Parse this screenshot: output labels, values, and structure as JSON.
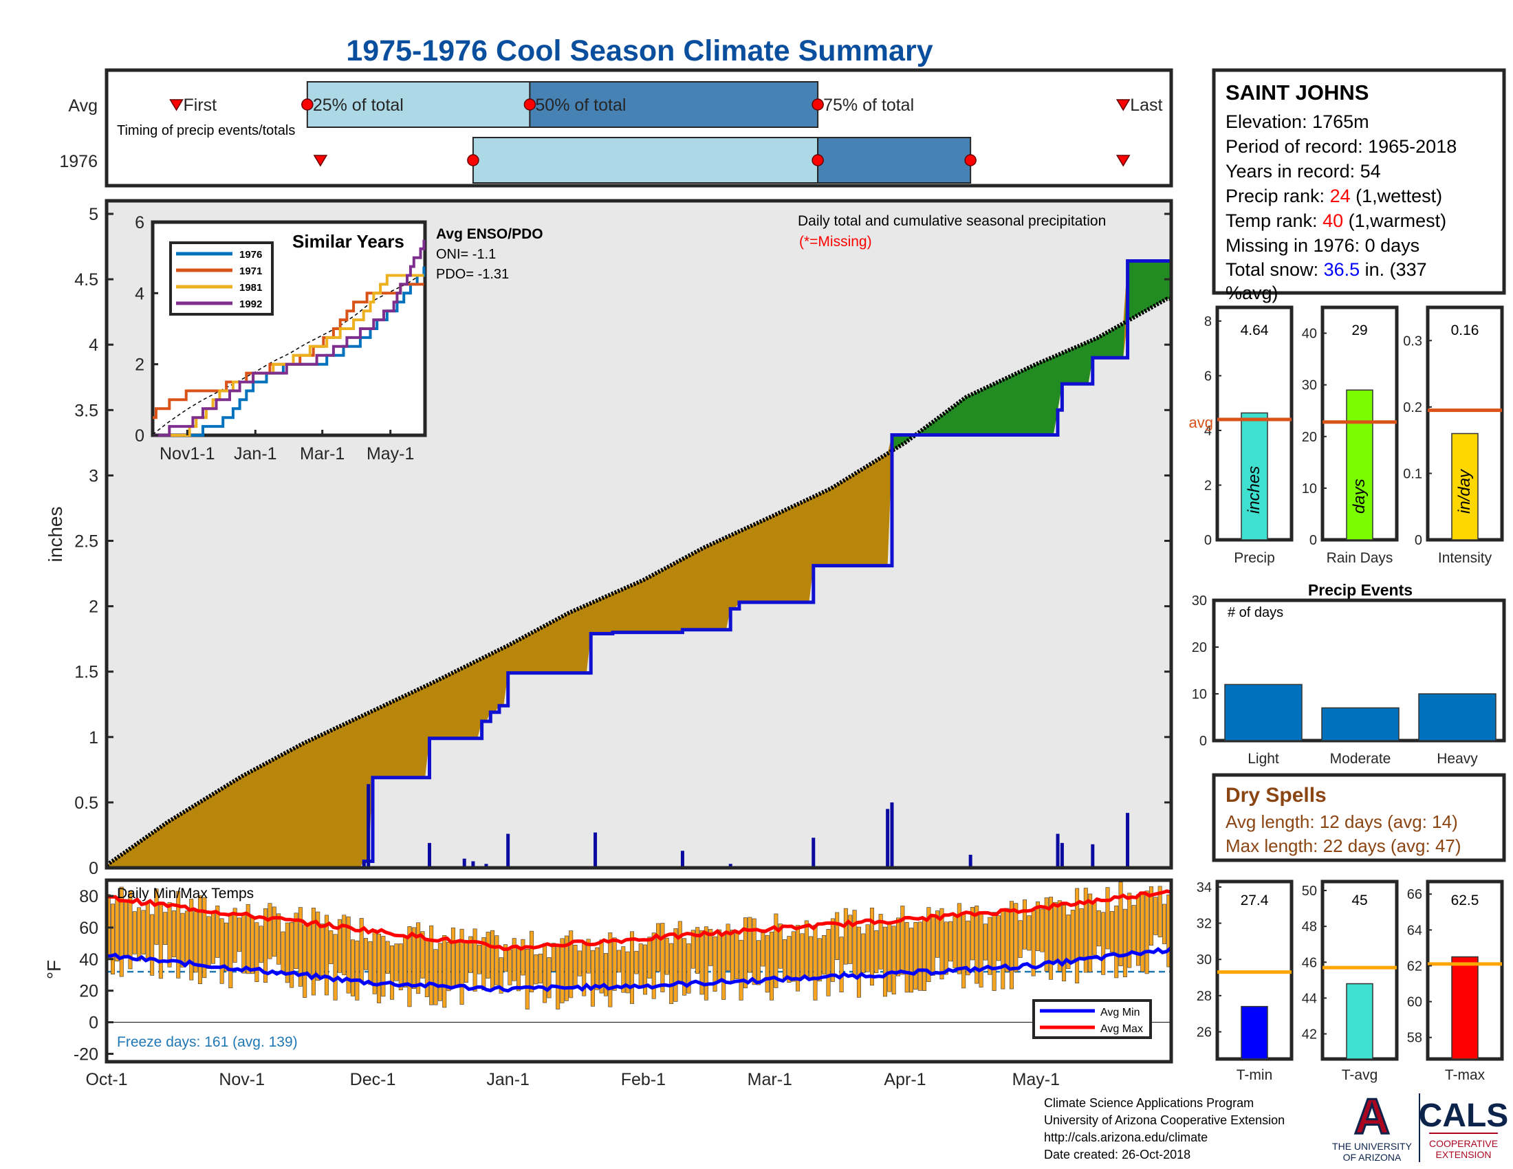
{
  "title": "1975-1976 Cool Season Climate Summary",
  "colors": {
    "title": "#0a4f9e",
    "cumulative_avg": "#000000",
    "above_avg_fill": "#228B22",
    "below_avg_fill": "#B8860B",
    "cumulative_1976": "#1010d0",
    "daily_bars": "#0a0aa0",
    "panel_bg": "#e8e8e8",
    "temp_bars": "#F7A520",
    "avg_min_line": "#0000ff",
    "avg_max_line": "#ff0000",
    "freeze_line": "#1f77b4",
    "avg_marker": "#ff0000",
    "light_blue": "#add8e6",
    "steel_blue": "#4682b4",
    "rank_red": "#ff0000",
    "snow_blue": "#0000ff",
    "dry_brown": "#8B4513",
    "avg_line": "#d95319",
    "temp_avg_line": "#ffa500",
    "precip_bar": "#40e0d0",
    "raindays_bar": "#7cfc00",
    "intensity_bar": "#ffd700",
    "events_bar": "#0072bd",
    "tmin_bar": "#0000ff",
    "tavg_bar": "#40e0d0",
    "tmax_bar": "#ff0000"
  },
  "timing": {
    "row_labels": [
      "Avg",
      "1976"
    ],
    "note": "Timing of precip events/totals",
    "avg_labels": {
      "first": "First",
      "q25": "25% of total",
      "q50": "50% of total",
      "q75": "75% of total",
      "last": "Last"
    },
    "avg": {
      "first": "Oct-17",
      "q25": "Nov-16",
      "q50": "Jan-6",
      "q75": "Mar-12",
      "last": "May-21"
    },
    "y1976": {
      "first": "Nov-19",
      "q25": "Dec-24",
      "q50": "Mar-12",
      "q75": "Apr-16",
      "last": "May-21"
    }
  },
  "station": {
    "name": "SAINT JOHNS",
    "elevation": "Elevation: 1765m",
    "period": "Period of record: 1965-2018",
    "years": "Years in record: 54",
    "precip_rank_label": "Precip rank: ",
    "precip_rank_value": "24",
    "precip_rank_note": " (1,wettest)",
    "temp_rank_label": "Temp rank: ",
    "temp_rank_value": "40",
    "temp_rank_note": " (1,warmest)",
    "missing": "Missing in 1976: 0 days",
    "snow_label": "Total snow: ",
    "snow_value": "36.5",
    "snow_note": " in. (337",
    "snow_note2": "%avg)"
  },
  "precip_panel": {
    "ylabel": "inches",
    "yticks": [
      "0",
      "0.5",
      "1",
      "1.5",
      "2",
      "2.5",
      "3",
      "3.5",
      "4",
      "4.5",
      "5"
    ],
    "annotation": "Daily total and cumulative seasonal precipitation",
    "missing_note": "(*=Missing)"
  },
  "similar_years": {
    "title": "Similar Years",
    "legend": [
      "1976",
      "1971",
      "1981",
      "1992"
    ],
    "colors": [
      "#0072bd",
      "#d95319",
      "#edb120",
      "#7e2f8e"
    ],
    "yticks": [
      "0",
      "2",
      "4",
      "6"
    ],
    "xticks": [
      "Nov1-1",
      "Jan-1",
      "Mar-1",
      "May-1"
    ],
    "enso_title": "Avg ENSO/PDO",
    "oni": "ONI= -1.1",
    "pdo": "PDO= -1.31"
  },
  "temp_panel": {
    "label": "Daily Min/Max Temps",
    "ylabel": "°F",
    "yticks": [
      "80",
      "60",
      "40",
      "20",
      "0",
      "-20"
    ],
    "freeze": "Freeze days: 161 (avg. 139)",
    "legend": [
      "Avg Min",
      "Avg Max"
    ]
  },
  "xaxis": {
    "ticks": [
      "Oct-1",
      "Nov-1",
      "Dec-1",
      "Jan-1",
      "Feb-1",
      "Mar-1",
      "Apr-1",
      "May-1"
    ]
  },
  "summary_bars": [
    {
      "label": "Precip",
      "value_text": "4.64",
      "value": 4.64,
      "avg": 4.4,
      "inner": "inches",
      "yticks": [
        "0",
        "2",
        "4",
        "6",
        "8"
      ],
      "avg_label": "avg",
      "max": 8.5
    },
    {
      "label": "Rain Days",
      "value_text": "29",
      "value": 29,
      "avg": 22.8,
      "inner": "days",
      "yticks": [
        "0",
        "10",
        "20",
        "30",
        "40"
      ],
      "max": 45
    },
    {
      "label": "Intensity",
      "value_text": "0.16",
      "value": 0.16,
      "avg": 0.195,
      "inner": "in/day",
      "yticks": [
        "0",
        "0.1",
        "0.2",
        "0.3"
      ],
      "max": 0.35
    }
  ],
  "events": {
    "title": "Precip Events",
    "ylabel": "# of days",
    "yticks": [
      "0",
      "10",
      "20",
      "30"
    ],
    "categories": [
      "Light",
      "Moderate",
      "Heavy"
    ],
    "values": [
      12,
      7,
      10
    ]
  },
  "dry_spells": {
    "title": "Dry Spells",
    "avg": "Avg length: 12 days (avg: 14)",
    "max": "Max length: 22 days (avg: 47)"
  },
  "temp_summary": [
    {
      "label": "T-min",
      "value_text": "27.4",
      "value": 27.4,
      "avg": 29.3,
      "yticks": [
        "26",
        "28",
        "30",
        "32",
        "34"
      ],
      "min": 24.5,
      "max": 34.3
    },
    {
      "label": "T-avg",
      "value_text": "45",
      "value": 44.8,
      "avg": 45.7,
      "yticks": [
        "42",
        "44",
        "46",
        "48",
        "50"
      ],
      "min": 40.6,
      "max": 50.5
    },
    {
      "label": "T-max",
      "value_text": "62.5",
      "value": 62.5,
      "avg": 62.1,
      "yticks": [
        "58",
        "60",
        "62",
        "64",
        "66"
      ],
      "min": 56.8,
      "max": 66.7
    }
  ],
  "footer": {
    "line1": "Climate Science Applications Program",
    "line2": "University of Arizona Cooperative Extension",
    "line3": "http://cals.arizona.edu/climate",
    "line4": " Date created: 26-Oct-2018"
  },
  "logos": {
    "ua_letter": "A",
    "ua_text1": "THE UNIVERSITY",
    "ua_text2": "OF ARIZONA",
    "cals": "CALS",
    "cals_text1": "COOPERATIVE",
    "cals_text2": "EXTENSION"
  },
  "chart_data": [
    {
      "type": "area",
      "title": "Daily total and cumulative seasonal precipitation",
      "ylabel": "inches",
      "ylim": [
        0,
        5.1
      ],
      "x_range": [
        "Oct-1",
        "May-31"
      ],
      "series": [
        {
          "name": "avg cumulative",
          "x": [
            "Oct-1",
            "Oct-15",
            "Nov-1",
            "Nov-15",
            "Dec-1",
            "Dec-15",
            "Jan-1",
            "Jan-15",
            "Feb-1",
            "Feb-15",
            "Mar-1",
            "Mar-15",
            "Apr-1",
            "Apr-15",
            "May-1",
            "May-15",
            "May-31"
          ],
          "values": [
            0.02,
            0.35,
            0.7,
            0.95,
            1.2,
            1.42,
            1.7,
            1.95,
            2.2,
            2.45,
            2.68,
            2.9,
            3.25,
            3.6,
            3.85,
            4.05,
            4.35
          ]
        },
        {
          "name": "1976 cumulative",
          "x": [
            "Oct-1",
            "Nov-18",
            "Nov-29",
            "Dec-1",
            "Dec-14",
            "Dec-26",
            "Dec-28",
            "Dec-30",
            "Jan-1",
            "Jan-20",
            "Jan-25",
            "Feb-10",
            "Feb-21",
            "Feb-23",
            "Mar-1",
            "Mar-11",
            "Mar-28",
            "Mar-29",
            "Apr-16",
            "Apr-17",
            "May-6",
            "May-7",
            "May-14",
            "May-22",
            "May-31"
          ],
          "values": [
            0,
            0,
            0.05,
            0.69,
            0.99,
            1.12,
            1.19,
            1.24,
            1.49,
            1.79,
            1.8,
            1.82,
            1.98,
            2.03,
            2.03,
            2.31,
            2.31,
            3.31,
            3.31,
            3.31,
            3.5,
            3.7,
            3.9,
            4.64,
            4.64
          ]
        },
        {
          "name": "1976 daily",
          "x": [
            "Nov-29",
            "Nov-30",
            "Dec-14",
            "Dec-22",
            "Dec-24",
            "Dec-27",
            "Jan-1",
            "Jan-21",
            "Feb-10",
            "Feb-21",
            "Mar-11",
            "Mar-28",
            "Mar-29",
            "Apr-16",
            "May-6",
            "May-7",
            "May-14",
            "May-22"
          ],
          "values": [
            0.05,
            0.64,
            0.19,
            0.07,
            0.05,
            0.03,
            0.26,
            0.27,
            0.13,
            0.03,
            0.23,
            0.45,
            0.5,
            0.1,
            0.26,
            0.19,
            0.18,
            0.42
          ]
        }
      ]
    },
    {
      "type": "line",
      "title": "Similar Years",
      "ylim": [
        0,
        6
      ],
      "x": [
        "Oct-1",
        "Nov-1",
        "Dec-1",
        "Jan-1",
        "Feb-1",
        "Mar-1",
        "Apr-1",
        "May-1",
        "Jun-1"
      ],
      "series": [
        {
          "name": "1976",
          "values": [
            0,
            0,
            0.3,
            1.5,
            2.0,
            2.1,
            2.6,
            3.5,
            4.7
          ]
        },
        {
          "name": "1971",
          "values": [
            0.6,
            1.2,
            1.3,
            1.8,
            2.0,
            2.6,
            3.8,
            4.1,
            4.2
          ]
        },
        {
          "name": "1981",
          "values": [
            0,
            0.1,
            1.2,
            1.7,
            2.1,
            2.6,
            3.2,
            4.6,
            4.5
          ]
        },
        {
          "name": "1992",
          "values": [
            0,
            0.3,
            1.0,
            1.7,
            1.9,
            2.2,
            2.8,
            3.6,
            5.5
          ]
        }
      ]
    },
    {
      "type": "bar",
      "title": "Daily Min/Max Temps",
      "ylabel": "°F",
      "ylim": [
        -25,
        90
      ],
      "x_range": [
        "Oct-1",
        "May-31"
      ],
      "series": [
        {
          "name": "Avg Min",
          "x": [
            "Oct-1",
            "Nov-1",
            "Dec-1",
            "Jan-1",
            "Feb-1",
            "Mar-1",
            "Apr-1",
            "May-1",
            "May-31"
          ],
          "values": [
            42,
            34,
            25,
            21,
            23,
            27,
            31,
            36,
            46
          ]
        },
        {
          "name": "Avg Max",
          "x": [
            "Oct-1",
            "Nov-1",
            "Dec-1",
            "Jan-1",
            "Feb-1",
            "Mar-1",
            "Apr-1",
            "May-1",
            "May-31"
          ],
          "values": [
            79,
            68,
            58,
            47,
            53,
            59,
            65,
            72,
            83
          ]
        }
      ]
    },
    {
      "type": "bar",
      "title": "Precip Events",
      "categories": [
        "Light",
        "Moderate",
        "Heavy"
      ],
      "values": [
        12,
        7,
        10
      ],
      "ylim": [
        0,
        30
      ]
    }
  ]
}
